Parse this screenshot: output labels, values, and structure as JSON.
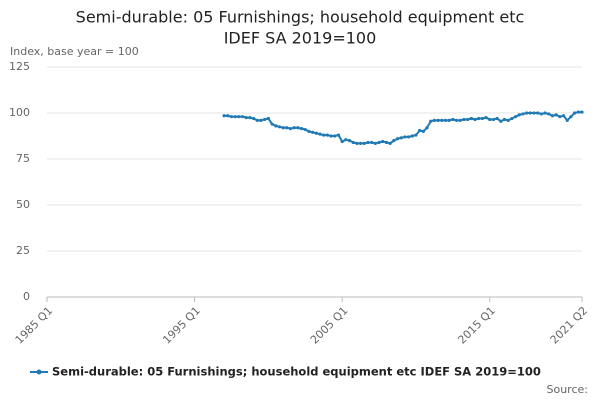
{
  "chart_data": {
    "type": "line",
    "title": "Semi-durable: 05 Furnishings; household equipment etc",
    "subtitle": "IDEF SA 2019=100",
    "y_label": "Index, base year = 100",
    "source": "Source:",
    "x": [
      1997,
      1997.25,
      1997.5,
      1997.75,
      1998,
      1998.25,
      1998.5,
      1998.75,
      1999,
      1999.25,
      1999.5,
      1999.75,
      2000,
      2000.25,
      2000.5,
      2000.75,
      2001,
      2001.25,
      2001.5,
      2001.75,
      2002,
      2002.25,
      2002.5,
      2002.75,
      2003,
      2003.25,
      2003.5,
      2003.75,
      2004,
      2004.25,
      2004.5,
      2004.75,
      2005,
      2005.25,
      2005.5,
      2005.75,
      2006,
      2006.25,
      2006.5,
      2006.75,
      2007,
      2007.25,
      2007.5,
      2007.75,
      2008,
      2008.25,
      2008.5,
      2008.75,
      2009,
      2009.25,
      2009.5,
      2009.75,
      2010,
      2010.25,
      2010.5,
      2010.75,
      2011,
      2011.25,
      2011.5,
      2011.75,
      2012,
      2012.25,
      2012.5,
      2012.75,
      2013,
      2013.25,
      2013.5,
      2013.75,
      2014,
      2014.25,
      2014.5,
      2014.75,
      2015,
      2015.25,
      2015.5,
      2015.75,
      2016,
      2016.25,
      2016.5,
      2016.75,
      2017,
      2017.25,
      2017.5,
      2017.75,
      2018,
      2018.25,
      2018.5,
      2018.75,
      2019,
      2019.25,
      2019.5,
      2019.75,
      2020,
      2020.25,
      2020.5,
      2020.75,
      2021,
      2021.25
    ],
    "series": [
      {
        "name": "Semi-durable: 05 Furnishings; household equipment etc IDEF SA 2019=100",
        "color": "#1f7ab5",
        "values": [
          98.5,
          98.5,
          98,
          98,
          98,
          98,
          97.5,
          97.5,
          97,
          96,
          96,
          96.5,
          97,
          94,
          93,
          92.5,
          92,
          92,
          91.5,
          92,
          92,
          91.5,
          91,
          90,
          89.5,
          89,
          88.5,
          88,
          88,
          87.5,
          87.5,
          88,
          84.5,
          85.5,
          85,
          84,
          83.5,
          83.5,
          83.5,
          84,
          84,
          83.5,
          84,
          84.5,
          84,
          83.5,
          85,
          86,
          86.5,
          87,
          87,
          87.5,
          88,
          90.5,
          90,
          92,
          95.5,
          96,
          96,
          96,
          96,
          96,
          96.5,
          96,
          96,
          96.5,
          96.5,
          97,
          96.5,
          97,
          97,
          97.5,
          96.5,
          96.5,
          97,
          95.5,
          96.5,
          96,
          97,
          98,
          99,
          99.5,
          100,
          100,
          100,
          100,
          99.5,
          100,
          99.5,
          98.5,
          99,
          98,
          98.5,
          96,
          98,
          100,
          100.5,
          100.5
        ]
      }
    ],
    "xlim": [
      1985,
      2021.25
    ],
    "xticks": [
      {
        "value": 1985,
        "label": "1985 Q1"
      },
      {
        "value": 1995,
        "label": "1995 Q1"
      },
      {
        "value": 2005,
        "label": "2005 Q1"
      },
      {
        "value": 2015,
        "label": "2015 Q1"
      },
      {
        "value": 2021.25,
        "label": "2021 Q2"
      }
    ],
    "ylim": [
      0,
      125
    ],
    "yticks": [
      0,
      25,
      50,
      75,
      100,
      125
    ],
    "grid": true
  }
}
